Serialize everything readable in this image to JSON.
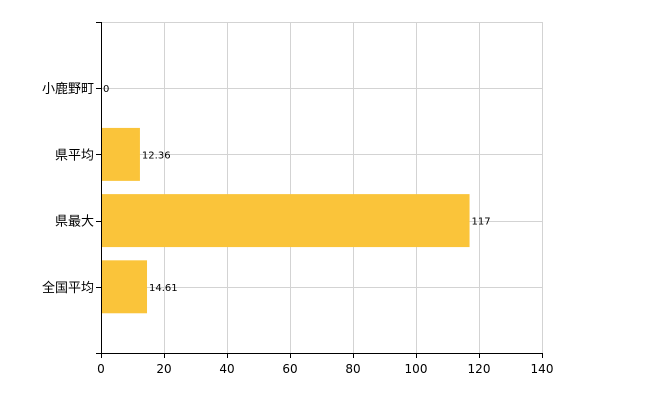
{
  "chart_data": {
    "type": "bar",
    "orientation": "horizontal",
    "categories": [
      "小鹿野町",
      "県平均",
      "県最大",
      "全国平均"
    ],
    "values": [
      0,
      12.36,
      117,
      14.61
    ],
    "data_labels": [
      "0",
      "12.36",
      "117",
      "14.61"
    ],
    "xlim": [
      0,
      140
    ],
    "x_ticks": [
      0,
      20,
      40,
      60,
      80,
      100,
      120,
      140
    ],
    "x_tick_labels": [
      "0",
      "20",
      "40",
      "60",
      "80",
      "100",
      "120",
      "140"
    ],
    "grid": true,
    "legend": "none",
    "bar_color": "#FAC43A",
    "grid_color": "#D3D3D3",
    "axis_color": "#000000"
  }
}
